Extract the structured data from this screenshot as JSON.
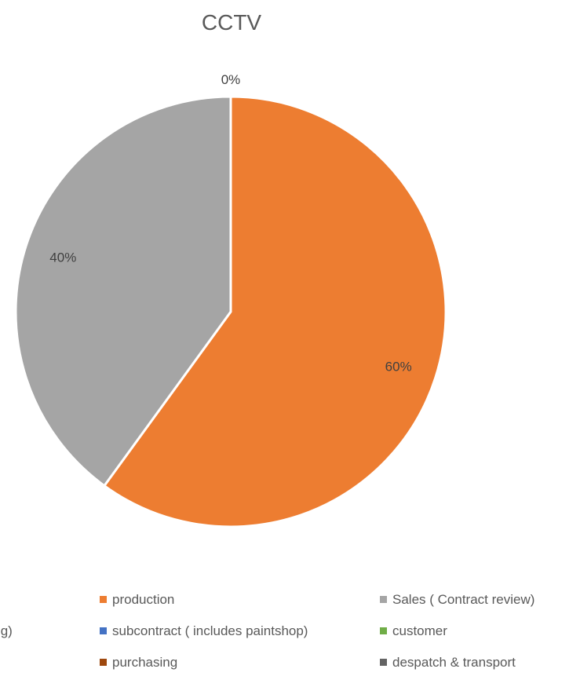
{
  "chart_data": {
    "type": "pie",
    "title": "CCTV",
    "legend_position": "bottom",
    "slices": [
      {
        "label": "production",
        "value": 60,
        "display": "60%",
        "color": "#ED7D31"
      },
      {
        "label": "Sales ( Contract review)",
        "value": 40,
        "display": "40%",
        "color": "#A5A5A5"
      },
      {
        "label": "subcontract ( includes paintshop)",
        "value": 0,
        "display": "0%",
        "color": "#4472C4"
      },
      {
        "label": "customer",
        "value": 0,
        "display": "",
        "color": "#70AD47"
      },
      {
        "label": "purchasing",
        "value": 0,
        "display": "",
        "color": "#9E480E"
      },
      {
        "label": "despatch & transport",
        "value": 0,
        "display": "",
        "color": "#636363"
      }
    ],
    "legend_rows": [
      [
        "production",
        "Sales ( Contract review)"
      ],
      [
        "g/ planning)",
        "subcontract ( includes paintshop)",
        "customer"
      ],
      [
        "purchasing",
        "despatch & transport"
      ]
    ],
    "legend_colors": {
      "production": "#ED7D31",
      "Sales ( Contract review)": "#A5A5A5",
      "g/ planning)": "",
      "subcontract ( includes paintshop)": "#4472C4",
      "customer": "#70AD47",
      "purchasing": "#9E480E",
      "despatch & transport": "#636363"
    }
  }
}
